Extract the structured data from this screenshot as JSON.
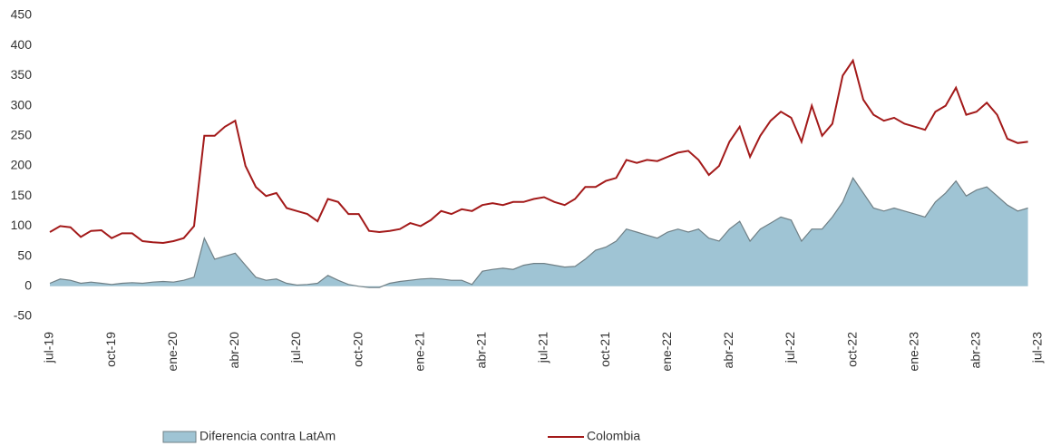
{
  "chart_data": {
    "type": "line",
    "categories": [
      "jul-19",
      null,
      null,
      null,
      null,
      null,
      "oct-19",
      null,
      null,
      null,
      null,
      null,
      "ene-20",
      null,
      null,
      null,
      null,
      null,
      "abr-20",
      null,
      null,
      null,
      null,
      null,
      "jul-20",
      null,
      null,
      null,
      null,
      null,
      "oct-20",
      null,
      null,
      null,
      null,
      null,
      "ene-21",
      null,
      null,
      null,
      null,
      null,
      "abr-21",
      null,
      null,
      null,
      null,
      null,
      "jul-21",
      null,
      null,
      null,
      null,
      null,
      "oct-21",
      null,
      null,
      null,
      null,
      null,
      "ene-22",
      null,
      null,
      null,
      null,
      null,
      "abr-22",
      null,
      null,
      null,
      null,
      null,
      "jul-22",
      null,
      null,
      null,
      null,
      null,
      "oct-22",
      null,
      null,
      null,
      null,
      null,
      "ene-23",
      null,
      null,
      null,
      null,
      null,
      "abr-23",
      null,
      null,
      null,
      null,
      null,
      "jul-23"
    ],
    "series": [
      {
        "name": "Diferencia contra LatAm",
        "kind": "area",
        "color": "#9fc4d4",
        "values": [
          5,
          12,
          10,
          5,
          7,
          5,
          3,
          5,
          6,
          5,
          7,
          8,
          7,
          10,
          15,
          80,
          45,
          50,
          55,
          35,
          15,
          10,
          12,
          5,
          2,
          3,
          5,
          18,
          10,
          3,
          0,
          -2,
          -2,
          5,
          8,
          10,
          12,
          13,
          12,
          10,
          10,
          3,
          25,
          28,
          30,
          28,
          35,
          38,
          38,
          35,
          32,
          33,
          45,
          60,
          65,
          75,
          95,
          90,
          85,
          80,
          90,
          95,
          90,
          95,
          80,
          75,
          95,
          108,
          75,
          95,
          105,
          115,
          110,
          75,
          95,
          95,
          115,
          140,
          180,
          155,
          130,
          125,
          130,
          125,
          120,
          115,
          140,
          155,
          175,
          150,
          160,
          165,
          150,
          135,
          125,
          130,
          null
        ]
      },
      {
        "name": "Colombia",
        "kind": "line",
        "color": "#a31a1a",
        "values": [
          90,
          100,
          98,
          82,
          92,
          93,
          80,
          88,
          88,
          75,
          73,
          72,
          75,
          80,
          100,
          250,
          250,
          265,
          275,
          200,
          165,
          150,
          155,
          130,
          125,
          120,
          108,
          145,
          140,
          120,
          120,
          92,
          90,
          92,
          95,
          105,
          100,
          110,
          125,
          120,
          128,
          125,
          135,
          138,
          135,
          140,
          140,
          145,
          148,
          140,
          135,
          145,
          165,
          165,
          175,
          180,
          210,
          205,
          210,
          208,
          215,
          222,
          225,
          210,
          185,
          200,
          240,
          265,
          215,
          250,
          275,
          290,
          280,
          240,
          300,
          250,
          270,
          350,
          375,
          310,
          285,
          275,
          280,
          270,
          265,
          260,
          290,
          300,
          330,
          285,
          290,
          305,
          285,
          245,
          238,
          240,
          null
        ]
      }
    ],
    "ylim": [
      -50,
      450
    ],
    "yticks": [
      -50,
      0,
      50,
      100,
      150,
      200,
      250,
      300,
      350,
      400,
      450
    ]
  }
}
